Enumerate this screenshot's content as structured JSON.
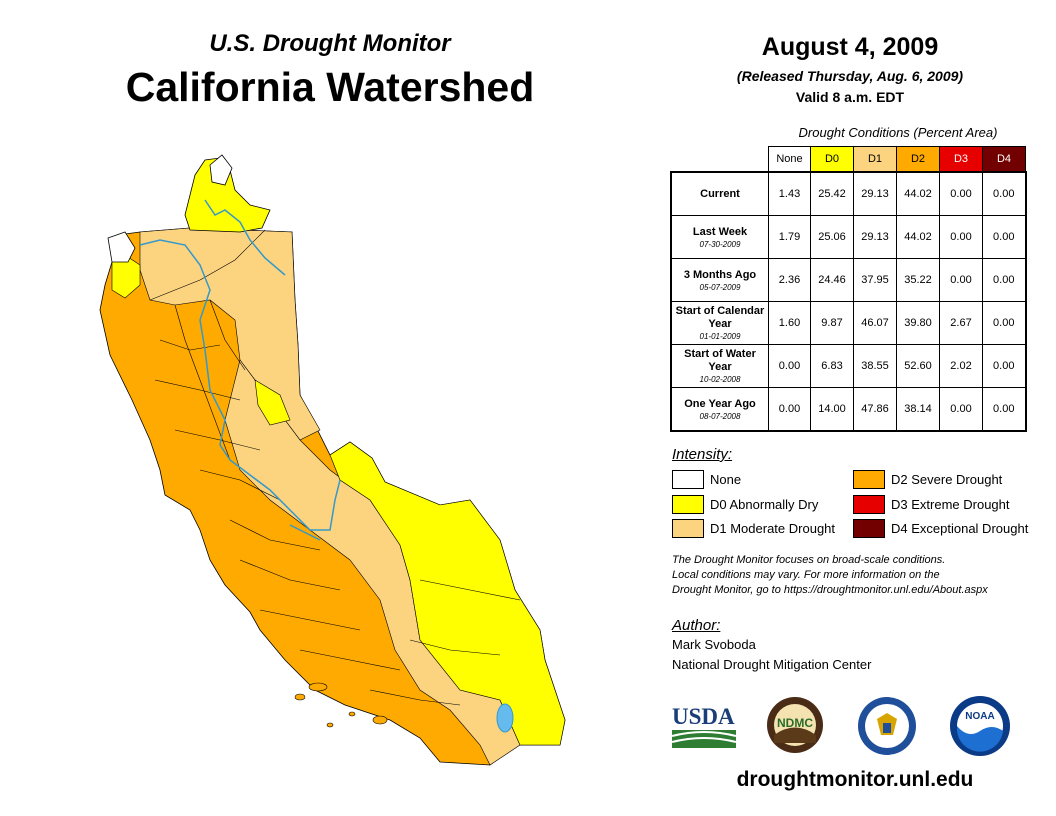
{
  "header": {
    "subtitle": "U.S. Drought Monitor",
    "title": "California Watershed"
  },
  "info": {
    "date": "August 4, 2009",
    "released": "(Released Thursday, Aug. 6, 2009)",
    "valid": "Valid 8 a.m. EDT"
  },
  "table": {
    "caption": "Drought Conditions (Percent Area)",
    "columns": [
      "None",
      "D0",
      "D1",
      "D2",
      "D3",
      "D4"
    ],
    "column_colors": [
      "#ffffff",
      "#ffff00",
      "#fcd37f",
      "#ffaa00",
      "#e60000",
      "#730000"
    ],
    "rows": [
      {
        "label": "Current",
        "date": "",
        "values": [
          "1.43",
          "25.42",
          "29.13",
          "44.02",
          "0.00",
          "0.00"
        ]
      },
      {
        "label": "Last Week",
        "date": "07-30-2009",
        "values": [
          "1.79",
          "25.06",
          "29.13",
          "44.02",
          "0.00",
          "0.00"
        ]
      },
      {
        "label": "3 Months Ago",
        "date": "05-07-2009",
        "values": [
          "2.36",
          "24.46",
          "37.95",
          "35.22",
          "0.00",
          "0.00"
        ]
      },
      {
        "label": "Start of Calendar Year",
        "date": "01-01-2009",
        "values": [
          "1.60",
          "9.87",
          "46.07",
          "39.80",
          "2.67",
          "0.00"
        ]
      },
      {
        "label": "Start of Water Year",
        "date": "10-02-2008",
        "values": [
          "0.00",
          "6.83",
          "38.55",
          "52.60",
          "2.02",
          "0.00"
        ]
      },
      {
        "label": "One Year Ago",
        "date": "08-07-2008",
        "values": [
          "0.00",
          "14.00",
          "47.86",
          "38.14",
          "0.00",
          "0.00"
        ]
      }
    ]
  },
  "legend": {
    "heading": "Intensity:",
    "items": [
      {
        "label": "None",
        "color": "#ffffff"
      },
      {
        "label": "D0 Abnormally Dry",
        "color": "#ffff00"
      },
      {
        "label": "D1 Moderate Drought",
        "color": "#fcd37f"
      },
      {
        "label": "D2 Severe Drought",
        "color": "#ffaa00"
      },
      {
        "label": "D3 Extreme Drought",
        "color": "#e60000"
      },
      {
        "label": "D4 Exceptional Drought",
        "color": "#730000"
      }
    ]
  },
  "note": {
    "line1": "The Drought Monitor focuses on broad-scale conditions.",
    "line2": "Local conditions may vary. For more information on the",
    "line3": "Drought Monitor, go to https://droughtmonitor.unl.edu/About.aspx"
  },
  "author": {
    "heading": "Author:",
    "name": "Mark Svoboda",
    "org": "National Drought Mitigation Center"
  },
  "logos": {
    "usda": "USDA",
    "ndmc": "NDMC",
    "noaa": "NOAA",
    "commerce": "commerce-seal-icon"
  },
  "footer": {
    "website": "droughtmonitor.unl.edu"
  },
  "map": {
    "colors": {
      "none": "#ffffff",
      "d0": "#ffff00",
      "d1": "#fcd37f",
      "d2": "#ffaa00",
      "water": "#3399cc",
      "lake": "#66bbee"
    }
  }
}
